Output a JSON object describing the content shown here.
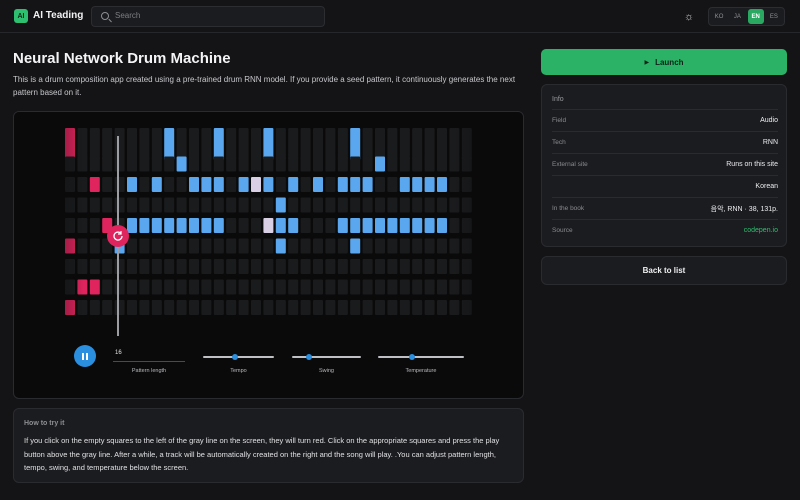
{
  "header": {
    "logo_text": "AI",
    "brand": "AI Teading",
    "search_placeholder": "Search",
    "languages": [
      "KO",
      "JA",
      "EN",
      "ES"
    ],
    "active_language": "EN"
  },
  "page": {
    "title": "Neural Network Drum Machine",
    "description": "This is a drum composition app created using a pre-trained drum RNN model. If you provide a seed pattern, it continuously generates the next pattern based on it."
  },
  "demo": {
    "pattern_length": "16",
    "pattern_length_label": "Pattern length",
    "tempo_label": "Tempo",
    "swing_label": "Swing",
    "temperature_label": "Temperature",
    "tempo_level": 0.45,
    "swing_level": 0.25,
    "temperature_level": 0.4,
    "colors": {
      "seed": "#e0245e",
      "generated": "#5aa7f0",
      "highlight": "#d9d0e6",
      "empty": "#1a1b1d",
      "accent": "#2b8fe0"
    },
    "rows": [
      {
        "seed": [
          0
        ],
        "gen": [
          8,
          12,
          16,
          23
        ]
      },
      {
        "seed": [],
        "gen": [
          9,
          25
        ]
      },
      {
        "seed": [
          2
        ],
        "gen": [
          5,
          7,
          10,
          11,
          12,
          14,
          15,
          16,
          18,
          20,
          22,
          23,
          24,
          27,
          28,
          29,
          30
        ],
        "hl": [
          15
        ]
      },
      {
        "seed": [],
        "gen": [
          17
        ]
      },
      {
        "seed": [
          3
        ],
        "gen": [
          5,
          6,
          7,
          8,
          9,
          10,
          11,
          12,
          17,
          18,
          22,
          23,
          24,
          25,
          26,
          27,
          28,
          29,
          30
        ],
        "hl": [
          16
        ]
      },
      {
        "seed": [
          0
        ],
        "gen": [
          4,
          17,
          23
        ]
      },
      {
        "seed": [],
        "gen": []
      },
      {
        "seed": [
          1,
          2
        ],
        "gen": []
      },
      {
        "seed": [
          0
        ],
        "gen": []
      }
    ]
  },
  "howto": {
    "heading": "How to try it",
    "text": "If you click on the empty squares to the left of the gray line on the screen, they will turn red. Click on the appropriate squares and press the play button above the gray line. After a while, a track will be automatically created on the right and the song will play. .You can adjust pattern length, tempo, swing, and temperature below the screen."
  },
  "sidebar": {
    "launch_label": "Launch",
    "info_heading": "Info",
    "info": [
      {
        "k": "Field",
        "v": "Audio"
      },
      {
        "k": "Tech",
        "v": "RNN"
      },
      {
        "k": "External site",
        "v": "Runs on this site"
      },
      {
        "k": "",
        "v": "Korean"
      },
      {
        "k": "In the book",
        "v": "음악, RNN · 38, 131p."
      },
      {
        "k": "Source",
        "v": "codepen.io"
      }
    ],
    "back_label": "Back to list"
  }
}
